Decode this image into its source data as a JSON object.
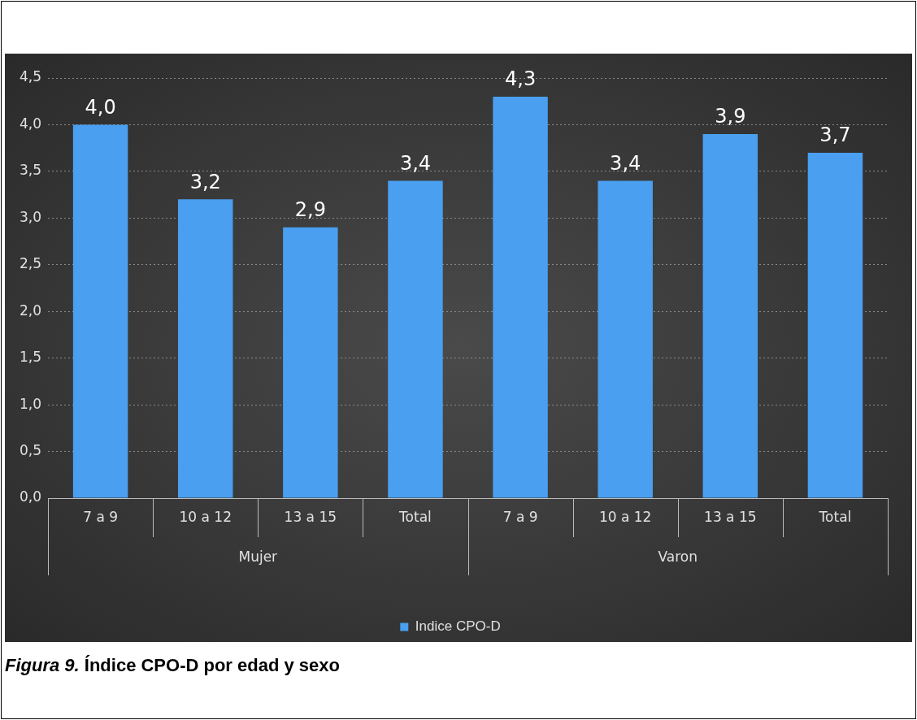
{
  "chart_data": {
    "type": "bar",
    "title": "Figura 9. Índice CPO-D por edad y sexo",
    "categories": [
      "7 a 9",
      "10 a 12",
      "13 a 15",
      "Total",
      "7 a 9",
      "10 a 12",
      "13 a 15",
      "Total"
    ],
    "series": [
      {
        "name": "Indice CPO-D",
        "color": "#4a9ff0",
        "values": [
          4.0,
          3.2,
          2.9,
          3.4,
          4.3,
          3.4,
          3.9,
          3.7
        ],
        "value_labels": [
          "4,0",
          "3,2",
          "2,9",
          "3,4",
          "4,3",
          "3,4",
          "3,9",
          "3,7"
        ]
      }
    ],
    "annotations": [
      "Mujer",
      "Varon"
    ],
    "ylim": [
      0,
      4.5
    ],
    "yticks": [
      {
        "value": 0,
        "label": "0,0"
      },
      {
        "value": 0.5,
        "label": "0,5"
      },
      {
        "value": 1,
        "label": "1,0"
      },
      {
        "value": 1.5,
        "label": "1,5"
      },
      {
        "value": 2,
        "label": "2,0"
      },
      {
        "value": 2.5,
        "label": "2,5"
      },
      {
        "value": 3,
        "label": "3,0"
      },
      {
        "value": 3.5,
        "label": "3,5"
      },
      {
        "value": 4,
        "label": "4,0"
      },
      {
        "value": 4.5,
        "label": "4,5"
      }
    ],
    "grid": "y",
    "legend": "bottom"
  }
}
